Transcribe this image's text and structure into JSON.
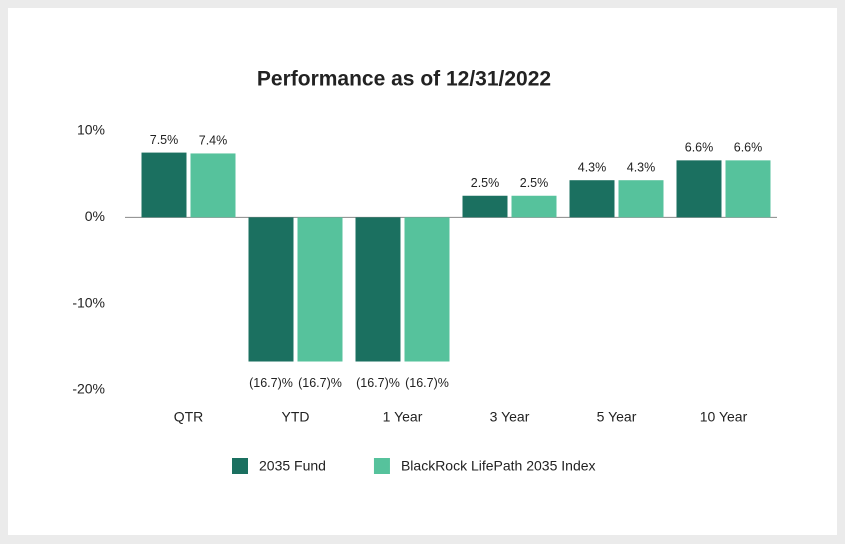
{
  "chart_data": {
    "type": "bar",
    "title": "Performance as of 12/31/2022",
    "categories": [
      "QTR",
      "YTD",
      "1 Year",
      "3 Year",
      "5 Year",
      "10 Year"
    ],
    "series": [
      {
        "name": "2035 Fund",
        "color": "#1b7060",
        "values": [
          7.5,
          -16.7,
          -16.7,
          2.5,
          4.3,
          6.6
        ],
        "value_labels": [
          "7.5%",
          "(16.7)%",
          "(16.7)%",
          "2.5%",
          "4.3%",
          "6.6%"
        ]
      },
      {
        "name": "BlackRock LifePath 2035 Index",
        "color": "#56c29c",
        "values": [
          7.4,
          -16.7,
          -16.7,
          2.5,
          4.3,
          6.6
        ],
        "value_labels": [
          "7.4%",
          "(16.7)%",
          "(16.7)%",
          "2.5%",
          "4.3%",
          "6.6%"
        ]
      }
    ],
    "ylim": [
      -20,
      10
    ],
    "yticks": [
      {
        "value": 10,
        "label": "10%"
      },
      {
        "value": 0,
        "label": "0%"
      },
      {
        "value": -10,
        "label": "-10%"
      },
      {
        "value": -20,
        "label": "-20%"
      }
    ],
    "legend": "bottom"
  }
}
